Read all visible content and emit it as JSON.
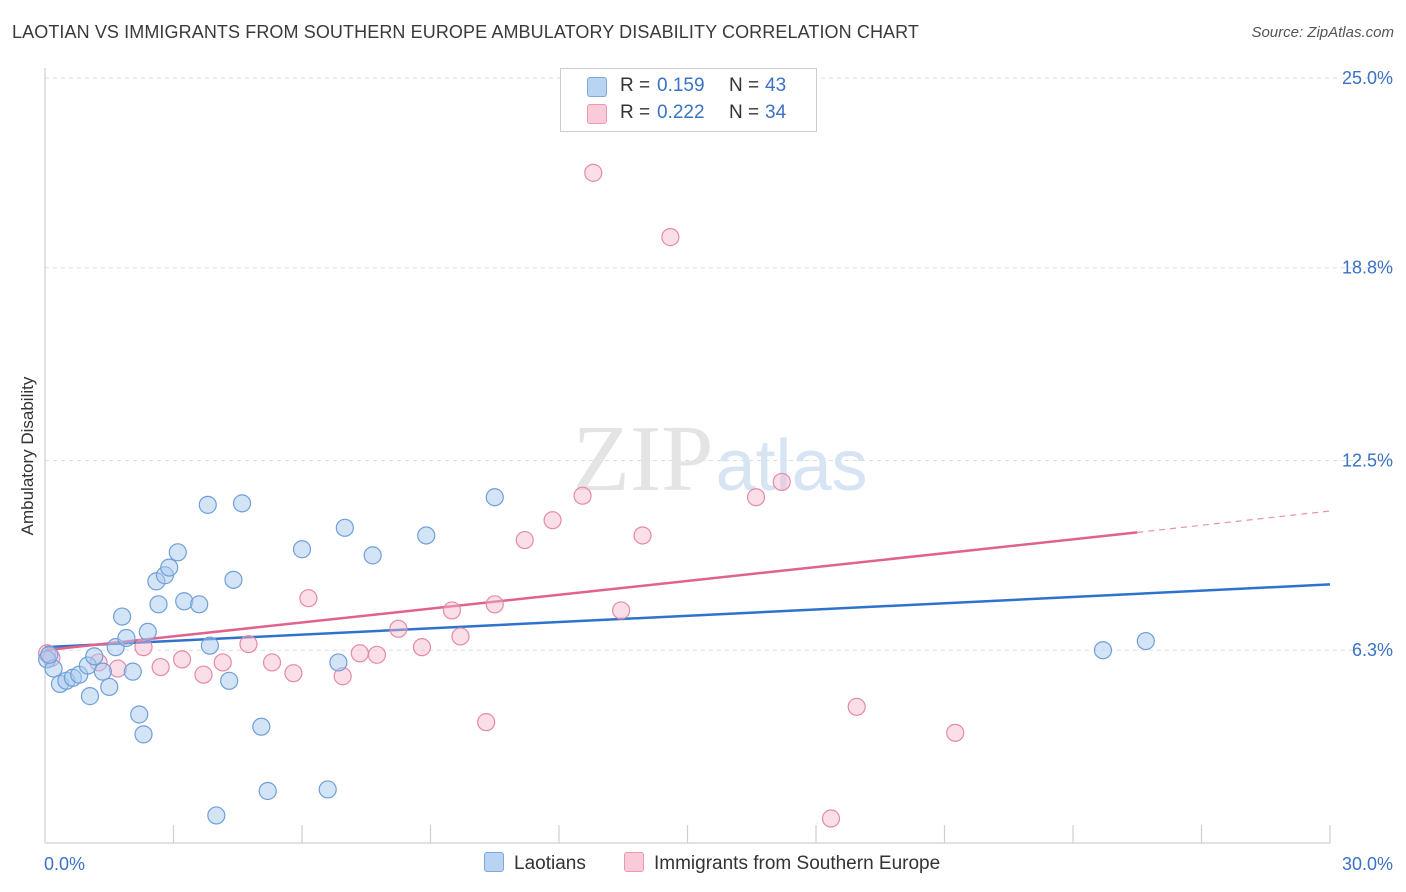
{
  "chart_data": {
    "type": "scatter",
    "title": "LAOTIAN VS IMMIGRANTS FROM SOUTHERN EUROPE AMBULATORY DISABILITY CORRELATION CHART",
    "source": "Source: ZipAtlas.com",
    "ylabel": "Ambulatory Disability",
    "xlabel": "",
    "xlim": [
      0,
      30
    ],
    "ylim": [
      0,
      25
    ],
    "x_tick_labels": [
      "0.0%",
      "30.0%"
    ],
    "y_ticks": [
      6.3,
      12.5,
      18.8,
      25.0
    ],
    "y_tick_labels": [
      "6.3%",
      "12.5%",
      "18.8%",
      "25.0%"
    ],
    "grid": true,
    "legend_position": "top-center",
    "watermark": "ZIPatlas",
    "colors": {
      "laotian_fill": "#a9c9f0",
      "laotian_stroke": "#6f9fd8",
      "laotian_line": "#2f72cc",
      "southern_fill": "#f7b9cb",
      "southern_stroke": "#e58aa7",
      "southern_line": "#e0628e",
      "accent_text": "#3a72c4"
    },
    "legend": [
      {
        "series": "Laotians",
        "r_label": "R =",
        "r_value": "0.159",
        "n_label": "N =",
        "n_value": "43"
      },
      {
        "series": "Immigrants from Southern Europe",
        "r_label": "R =",
        "r_value": "0.222",
        "n_label": "N =",
        "n_value": "34"
      }
    ],
    "series": [
      {
        "name": "Laotians",
        "trend": {
          "x": [
            0,
            30
          ],
          "y": [
            6.4,
            8.45
          ]
        },
        "points": [
          [
            0.05,
            6.0
          ],
          [
            0.2,
            5.7
          ],
          [
            0.35,
            5.2
          ],
          [
            0.5,
            5.3
          ],
          [
            0.65,
            5.4
          ],
          [
            0.8,
            5.5
          ],
          [
            1.0,
            5.8
          ],
          [
            1.05,
            4.8
          ],
          [
            1.15,
            6.1
          ],
          [
            1.35,
            5.6
          ],
          [
            1.5,
            5.1
          ],
          [
            1.65,
            6.4
          ],
          [
            1.8,
            7.4
          ],
          [
            1.9,
            6.7
          ],
          [
            2.05,
            5.6
          ],
          [
            2.2,
            4.2
          ],
          [
            2.3,
            3.55
          ],
          [
            2.4,
            6.9
          ],
          [
            2.6,
            8.55
          ],
          [
            2.65,
            7.8
          ],
          [
            2.8,
            8.75
          ],
          [
            2.9,
            9.0
          ],
          [
            3.1,
            9.5
          ],
          [
            3.25,
            7.9
          ],
          [
            3.6,
            7.8
          ],
          [
            3.8,
            11.05
          ],
          [
            3.85,
            6.45
          ],
          [
            4.0,
            0.9
          ],
          [
            4.3,
            5.3
          ],
          [
            4.4,
            8.6
          ],
          [
            4.6,
            11.1
          ],
          [
            5.05,
            3.8
          ],
          [
            5.2,
            1.7
          ],
          [
            6.0,
            9.6
          ],
          [
            6.6,
            1.75
          ],
          [
            6.85,
            5.9
          ],
          [
            7.0,
            10.3
          ],
          [
            7.65,
            9.4
          ],
          [
            8.9,
            10.05
          ],
          [
            10.5,
            11.3
          ],
          [
            24.7,
            6.3
          ],
          [
            25.7,
            6.6
          ],
          [
            0.1,
            6.15
          ]
        ]
      },
      {
        "name": "Immigrants from Southern Europe",
        "trend": {
          "x": [
            0,
            25.5
          ],
          "y": [
            6.3,
            10.15
          ]
        },
        "trend_extension": {
          "x": [
            25.5,
            30
          ],
          "y": [
            10.15,
            10.85
          ]
        },
        "points": [
          [
            0.05,
            6.2
          ],
          [
            1.25,
            5.9
          ],
          [
            1.7,
            5.7
          ],
          [
            2.3,
            6.4
          ],
          [
            2.7,
            5.75
          ],
          [
            3.2,
            6.0
          ],
          [
            3.7,
            5.5
          ],
          [
            4.15,
            5.9
          ],
          [
            4.75,
            6.5
          ],
          [
            5.3,
            5.9
          ],
          [
            5.8,
            5.55
          ],
          [
            6.15,
            8.0
          ],
          [
            6.95,
            5.45
          ],
          [
            7.35,
            6.2
          ],
          [
            7.75,
            6.15
          ],
          [
            8.25,
            7.0
          ],
          [
            8.8,
            6.4
          ],
          [
            9.5,
            7.6
          ],
          [
            9.7,
            6.75
          ],
          [
            10.3,
            3.95
          ],
          [
            10.5,
            7.8
          ],
          [
            11.2,
            9.9
          ],
          [
            11.85,
            10.55
          ],
          [
            12.55,
            11.35
          ],
          [
            12.8,
            21.9
          ],
          [
            13.45,
            7.6
          ],
          [
            13.95,
            10.05
          ],
          [
            14.6,
            19.8
          ],
          [
            16.6,
            11.3
          ],
          [
            17.2,
            11.8
          ],
          [
            18.35,
            0.8
          ],
          [
            18.95,
            4.45
          ],
          [
            21.25,
            3.6
          ],
          [
            0.15,
            6.05
          ]
        ]
      }
    ]
  }
}
